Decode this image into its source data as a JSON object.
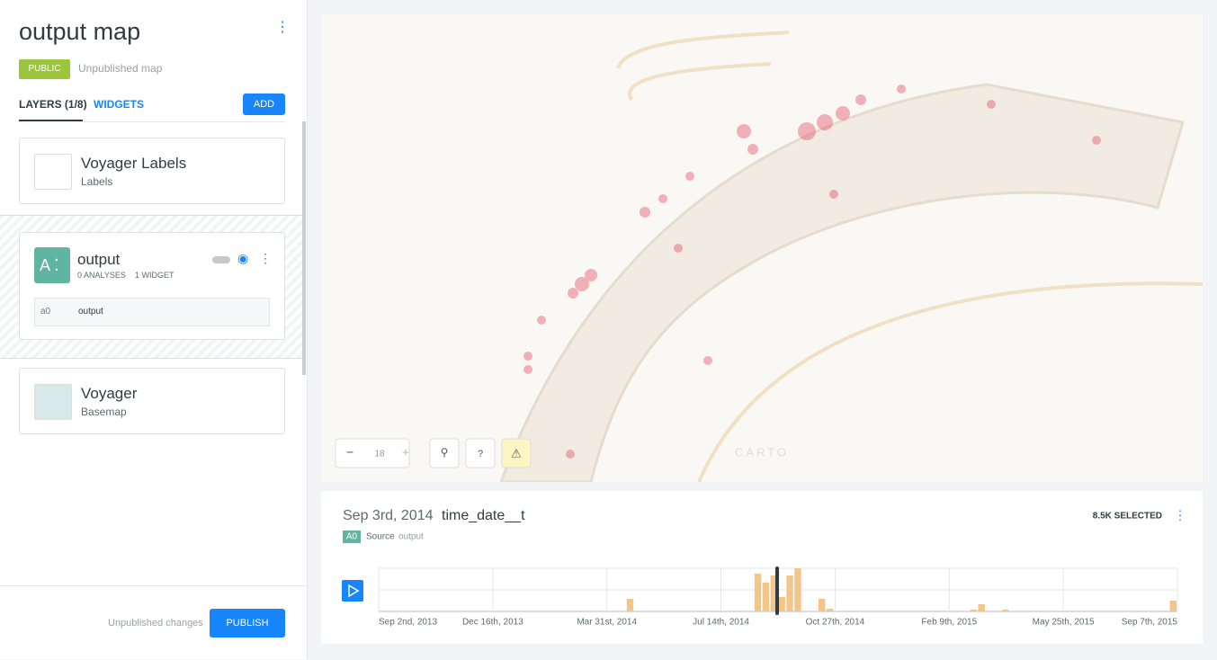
{
  "header": {
    "title": "output map",
    "badge": "PUBLIC",
    "status": "Unpublished map"
  },
  "tabs": {
    "layers": "LAYERS (1/8)",
    "widgets": "WIDGETS",
    "add": "ADD"
  },
  "layers": [
    {
      "name": "Voyager Labels",
      "kind": "Labels"
    },
    {
      "avatar": "A",
      "name": "output",
      "analyses": "0 ANALYSES",
      "widgets": "1 WIDGET",
      "node_id": "a0",
      "node_name": "output"
    },
    {
      "name": "Voyager",
      "kind": "Basemap"
    }
  ],
  "footer": {
    "status": "Unpublished changes",
    "publish": "PUBLISH"
  },
  "map": {
    "zoom": "18",
    "help": "?",
    "attribution": "CARTO"
  },
  "widget": {
    "date": "Sep 3rd, 2014",
    "column": "time_date__t",
    "selected": "8.5K SELECTED",
    "source_id": "A0",
    "source_label": "Source",
    "source_name": "output",
    "axis_labels": [
      "Sep 2nd, 2013",
      "Dec 16th, 2013",
      "Mar 31st, 2014",
      "Jul 14th, 2014",
      "Oct 27th, 2014",
      "Feb 9th, 2015",
      "May 25th, 2015",
      "Sep 7th, 2015"
    ],
    "histogram": {
      "color": "#f2c68a",
      "values": [
        0,
        0,
        0,
        0,
        0,
        0,
        0,
        0,
        0,
        0,
        0,
        0,
        0,
        0,
        0,
        0,
        0,
        0,
        0,
        0,
        0,
        0,
        0,
        0,
        0,
        0,
        0,
        0,
        0,
        0,
        0,
        14,
        0,
        0,
        0,
        0,
        0,
        0,
        0,
        0,
        0,
        0,
        0,
        0,
        0,
        0,
        0,
        42,
        32,
        40,
        16,
        40,
        48,
        0,
        0,
        14,
        3,
        0,
        0,
        0,
        0,
        0,
        0,
        0,
        0,
        0,
        0,
        0,
        0,
        0,
        0,
        0,
        0,
        0,
        2,
        8,
        0,
        0,
        2,
        0,
        0,
        0,
        0,
        0,
        0,
        0,
        0,
        0,
        0,
        0,
        0,
        0,
        0,
        0,
        0,
        0,
        0,
        0,
        0,
        12
      ]
    }
  }
}
